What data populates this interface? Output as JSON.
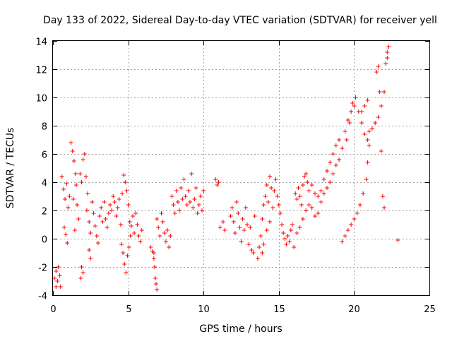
{
  "chart_data": {
    "type": "scatter",
    "title": "Day 133 of 2022, Sidereal Day-to-day VTEC variation (SDTVAR) for receiver yell",
    "xlabel": "GPS time / hours",
    "ylabel": "SDTVAR / TECUs",
    "xlim": [
      0,
      25
    ],
    "ylim": [
      -4,
      14
    ],
    "xticks": [
      0,
      5,
      10,
      15,
      20,
      25
    ],
    "yticks": [
      -4,
      -2,
      0,
      2,
      4,
      6,
      8,
      10,
      12,
      14
    ],
    "grid": true,
    "marker": "+",
    "color": "#ff0000",
    "series": [
      {
        "name": "SDTVAR",
        "points": [
          [
            0.1,
            -2.8
          ],
          [
            0.2,
            -2.3
          ],
          [
            0.3,
            -3.0
          ],
          [
            0.35,
            -2.0
          ],
          [
            0.45,
            -2.6
          ],
          [
            0.5,
            -3.4
          ],
          [
            0.2,
            -3.4
          ],
          [
            0.6,
            4.4
          ],
          [
            0.7,
            3.5
          ],
          [
            0.8,
            2.8
          ],
          [
            0.9,
            3.9
          ],
          [
            1.0,
            2.2
          ],
          [
            1.1,
            3.0
          ],
          [
            0.75,
            0.8
          ],
          [
            0.85,
            0.3
          ],
          [
            0.95,
            -0.3
          ],
          [
            1.2,
            6.8
          ],
          [
            1.3,
            6.2
          ],
          [
            1.4,
            5.5
          ],
          [
            1.5,
            4.6
          ],
          [
            1.55,
            3.8
          ],
          [
            1.6,
            2.4
          ],
          [
            1.7,
            1.4
          ],
          [
            1.45,
            0.6
          ],
          [
            1.35,
            2.8
          ],
          [
            1.8,
            4.6
          ],
          [
            1.9,
            4.0
          ],
          [
            2.0,
            5.6
          ],
          [
            2.1,
            6.0
          ],
          [
            2.2,
            4.4
          ],
          [
            2.3,
            3.2
          ],
          [
            2.25,
            2.0
          ],
          [
            2.4,
            1.2
          ],
          [
            2.5,
            0.4
          ],
          [
            1.9,
            -2.0
          ],
          [
            2.0,
            -2.4
          ],
          [
            1.85,
            -2.8
          ],
          [
            2.6,
            2.6
          ],
          [
            2.7,
            1.8
          ],
          [
            2.8,
            0.9
          ],
          [
            2.9,
            0.2
          ],
          [
            3.0,
            -0.3
          ],
          [
            2.5,
            -1.4
          ],
          [
            2.4,
            -0.8
          ],
          [
            3.1,
            1.6
          ],
          [
            3.2,
            2.2
          ],
          [
            3.3,
            1.2
          ],
          [
            3.4,
            2.6
          ],
          [
            3.5,
            1.4
          ],
          [
            3.6,
            0.8
          ],
          [
            3.7,
            1.8
          ],
          [
            3.8,
            2.4
          ],
          [
            3.9,
            2.0
          ],
          [
            4.0,
            3.0
          ],
          [
            4.1,
            2.6
          ],
          [
            4.2,
            1.6
          ],
          [
            4.3,
            2.2
          ],
          [
            4.4,
            2.8
          ],
          [
            4.5,
            1.0
          ],
          [
            4.6,
            3.2
          ],
          [
            4.7,
            4.5
          ],
          [
            4.8,
            4.0
          ],
          [
            4.9,
            3.4
          ],
          [
            4.55,
            -0.4
          ],
          [
            4.65,
            -1.0
          ],
          [
            4.75,
            -1.8
          ],
          [
            4.85,
            -2.4
          ],
          [
            4.95,
            -1.2
          ],
          [
            5.05,
            -0.6
          ],
          [
            5.15,
            0.2
          ],
          [
            5.1,
            1.2
          ],
          [
            5.0,
            2.4
          ],
          [
            5.2,
            0.9
          ],
          [
            5.3,
            1.6
          ],
          [
            5.4,
            0.4
          ],
          [
            5.5,
            1.8
          ],
          [
            5.6,
            1.0
          ],
          [
            5.7,
            0.2
          ],
          [
            5.8,
            -0.2
          ],
          [
            5.9,
            0.6
          ],
          [
            6.5,
            -0.6
          ],
          [
            6.6,
            -0.9
          ],
          [
            6.7,
            -1.4
          ],
          [
            6.75,
            -2.0
          ],
          [
            6.8,
            -2.8
          ],
          [
            6.85,
            -3.2
          ],
          [
            6.9,
            -3.6
          ],
          [
            6.7,
            -1.0
          ],
          [
            6.9,
            1.4
          ],
          [
            7.0,
            0.8
          ],
          [
            7.1,
            0.2
          ],
          [
            7.2,
            1.8
          ],
          [
            7.3,
            1.2
          ],
          [
            7.4,
            0.4
          ],
          [
            7.5,
            -0.2
          ],
          [
            7.6,
            0.6
          ],
          [
            7.7,
            -0.6
          ],
          [
            7.8,
            0.2
          ],
          [
            7.9,
            3.0
          ],
          [
            8.0,
            2.4
          ],
          [
            8.1,
            1.8
          ],
          [
            8.2,
            3.4
          ],
          [
            8.3,
            2.6
          ],
          [
            8.4,
            2.0
          ],
          [
            8.5,
            3.6
          ],
          [
            8.6,
            2.8
          ],
          [
            8.7,
            4.2
          ],
          [
            8.8,
            3.0
          ],
          [
            8.9,
            2.4
          ],
          [
            9.0,
            3.4
          ],
          [
            9.1,
            2.6
          ],
          [
            9.2,
            4.6
          ],
          [
            9.3,
            2.2
          ],
          [
            9.4,
            2.8
          ],
          [
            9.5,
            3.6
          ],
          [
            9.6,
            1.8
          ],
          [
            9.7,
            2.4
          ],
          [
            9.8,
            3.0
          ],
          [
            9.9,
            2.0
          ],
          [
            10.0,
            3.4
          ],
          [
            10.8,
            4.2
          ],
          [
            10.9,
            3.8
          ],
          [
            11.0,
            4.0
          ],
          [
            11.1,
            0.8
          ],
          [
            11.3,
            1.2
          ],
          [
            11.4,
            0.6
          ],
          [
            11.8,
            1.6
          ],
          [
            11.9,
            2.2
          ],
          [
            12.0,
            1.2
          ],
          [
            12.1,
            0.4
          ],
          [
            12.2,
            2.6
          ],
          [
            12.3,
            1.8
          ],
          [
            12.4,
            0.8
          ],
          [
            12.5,
            -0.2
          ],
          [
            12.6,
            1.4
          ],
          [
            12.7,
            0.6
          ],
          [
            12.8,
            2.2
          ],
          [
            12.9,
            1.0
          ],
          [
            13.0,
            -0.4
          ],
          [
            13.1,
            0.8
          ],
          [
            13.2,
            -0.8
          ],
          [
            13.3,
            -1.0
          ],
          [
            13.4,
            1.6
          ],
          [
            13.6,
            -1.4
          ],
          [
            13.7,
            -0.6
          ],
          [
            13.8,
            0.2
          ],
          [
            13.9,
            1.4
          ],
          [
            14.0,
            2.4
          ],
          [
            14.1,
            3.0
          ],
          [
            14.2,
            3.8
          ],
          [
            14.3,
            2.6
          ],
          [
            14.4,
            4.4
          ],
          [
            14.5,
            3.6
          ],
          [
            13.9,
            -1.0
          ],
          [
            14.0,
            -0.4
          ],
          [
            14.2,
            0.6
          ],
          [
            14.4,
            1.2
          ],
          [
            14.6,
            2.2
          ],
          [
            14.7,
            3.4
          ],
          [
            14.8,
            4.2
          ],
          [
            14.9,
            3.0
          ],
          [
            15.0,
            2.4
          ],
          [
            15.1,
            1.8
          ],
          [
            15.2,
            1.0
          ],
          [
            15.3,
            0.4
          ],
          [
            15.4,
            0.0
          ],
          [
            15.5,
            -0.4
          ],
          [
            15.6,
            0.2
          ],
          [
            15.7,
            -0.2
          ],
          [
            15.8,
            0.6
          ],
          [
            15.9,
            1.0
          ],
          [
            16.0,
            -0.6
          ],
          [
            16.1,
            3.2
          ],
          [
            16.2,
            2.8
          ],
          [
            16.3,
            3.6
          ],
          [
            16.4,
            3.0
          ],
          [
            16.5,
            2.4
          ],
          [
            16.6,
            3.8
          ],
          [
            16.7,
            4.4
          ],
          [
            16.8,
            4.6
          ],
          [
            16.9,
            4.0
          ],
          [
            17.0,
            3.4
          ],
          [
            16.2,
            0.4
          ],
          [
            16.4,
            0.8
          ],
          [
            16.6,
            1.4
          ],
          [
            16.8,
            2.0
          ],
          [
            17.0,
            2.4
          ],
          [
            17.2,
            2.2
          ],
          [
            17.4,
            1.6
          ],
          [
            17.6,
            1.8
          ],
          [
            17.8,
            2.6
          ],
          [
            18.0,
            3.2
          ],
          [
            17.2,
            3.8
          ],
          [
            17.4,
            3.2
          ],
          [
            17.6,
            3.0
          ],
          [
            17.8,
            3.4
          ],
          [
            18.0,
            4.2
          ],
          [
            18.2,
            4.8
          ],
          [
            18.4,
            5.4
          ],
          [
            18.6,
            6.0
          ],
          [
            18.8,
            6.6
          ],
          [
            19.0,
            7.0
          ],
          [
            18.2,
            3.6
          ],
          [
            18.4,
            4.0
          ],
          [
            18.6,
            4.6
          ],
          [
            18.8,
            5.2
          ],
          [
            19.0,
            5.6
          ],
          [
            19.2,
            6.4
          ],
          [
            19.4,
            7.6
          ],
          [
            19.6,
            8.4
          ],
          [
            19.8,
            9.0
          ],
          [
            20.0,
            9.4
          ],
          [
            19.2,
            -0.2
          ],
          [
            19.4,
            0.2
          ],
          [
            19.6,
            0.6
          ],
          [
            19.8,
            1.0
          ],
          [
            20.0,
            1.4
          ],
          [
            20.2,
            1.8
          ],
          [
            20.4,
            2.4
          ],
          [
            20.6,
            3.2
          ],
          [
            20.8,
            4.2
          ],
          [
            20.9,
            5.4
          ],
          [
            19.5,
            7.0
          ],
          [
            19.7,
            8.2
          ],
          [
            19.9,
            9.6
          ],
          [
            20.1,
            10.0
          ],
          [
            20.3,
            9.0
          ],
          [
            20.5,
            8.2
          ],
          [
            20.7,
            7.4
          ],
          [
            20.9,
            7.0
          ],
          [
            21.0,
            6.6
          ],
          [
            20.5,
            9.0
          ],
          [
            20.7,
            9.4
          ],
          [
            20.9,
            9.8
          ],
          [
            21.0,
            7.6
          ],
          [
            21.2,
            7.8
          ],
          [
            21.4,
            8.2
          ],
          [
            21.6,
            8.6
          ],
          [
            21.8,
            9.4
          ],
          [
            21.5,
            11.8
          ],
          [
            21.6,
            12.2
          ],
          [
            21.7,
            10.4
          ],
          [
            21.8,
            6.2
          ],
          [
            21.9,
            3.0
          ],
          [
            22.0,
            2.2
          ],
          [
            22.0,
            10.4
          ],
          [
            22.1,
            12.4
          ],
          [
            22.2,
            12.8
          ],
          [
            22.3,
            13.6
          ],
          [
            22.2,
            13.2
          ],
          [
            22.9,
            -0.1
          ]
        ]
      }
    ]
  }
}
